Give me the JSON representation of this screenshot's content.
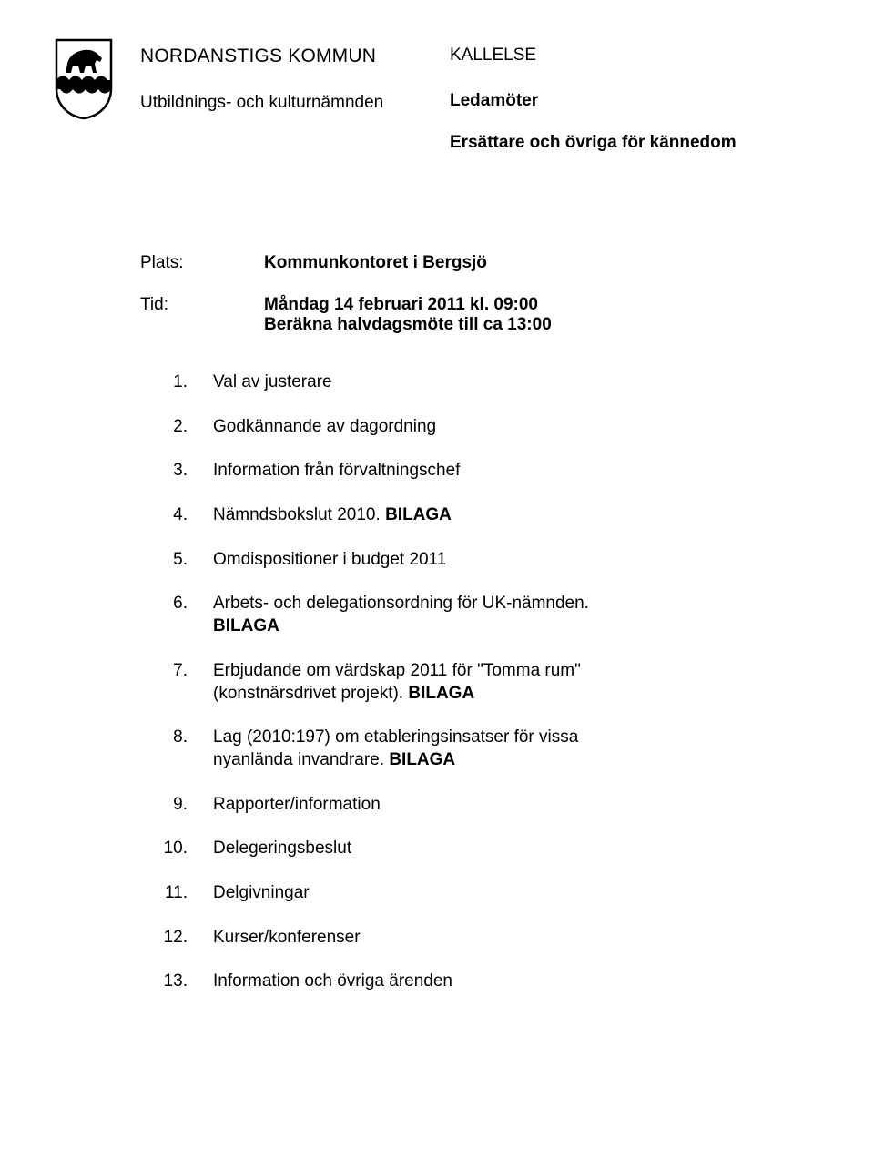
{
  "header": {
    "org_name": "NORDANSTIGS KOMMUN",
    "committee": "Utbildnings- och kulturnämnden",
    "doc_type": "KALLELSE",
    "ledamoter": "Ledamöter",
    "ersattare": "Ersättare och övriga för kännedom"
  },
  "meta": {
    "plats_label": "Plats:",
    "plats_value": "Kommunkontoret i Bergsjö",
    "tid_label": "Tid:",
    "tid_line1": "Måndag 14 februari 2011 kl. 09:00",
    "tid_line2": "Beräkna halvdagsmöte till ca 13:00"
  },
  "agenda": [
    {
      "num": "1.",
      "text": "Val av justerare"
    },
    {
      "num": "2.",
      "text": "Godkännande av dagordning"
    },
    {
      "num": "3.",
      "text": "Information från förvaltningschef"
    },
    {
      "num": "4.",
      "text": "Nämndsbokslut 2010. ",
      "bold_suffix": "BILAGA"
    },
    {
      "num": "5.",
      "text": "Omdispositioner i budget 2011"
    },
    {
      "num": "6.",
      "text": "Arbets- och delegationsordning för UK-nämnden.",
      "bold_line2": "BILAGA"
    },
    {
      "num": "7.",
      "text": "Erbjudande om värdskap 2011 för \"Tomma rum\" (konstnärsdrivet projekt). ",
      "bold_suffix": "BILAGA"
    },
    {
      "num": "8.",
      "text": "Lag (2010:197) om etableringsinsatser för vissa nyanlända invandrare. ",
      "bold_suffix": "BILAGA"
    },
    {
      "num": "9.",
      "text": "Rapporter/information"
    },
    {
      "num": "10.",
      "text": "Delegeringsbeslut"
    },
    {
      "num": "11.",
      "text": "Delgivningar"
    },
    {
      "num": "12.",
      "text": "Kurser/konferenser"
    },
    {
      "num": "13.",
      "text": "Information och övriga ärenden"
    }
  ],
  "crest_colors": {
    "shield_stroke": "#000000",
    "top_fill": "#ffffff",
    "bottom_fill": "#ffffff",
    "scallop_fill": "#000000",
    "horse_fill": "#000000"
  }
}
